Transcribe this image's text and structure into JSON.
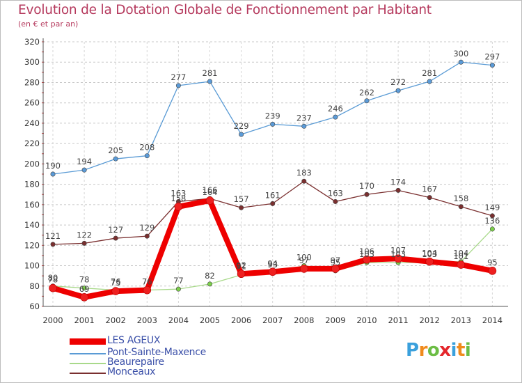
{
  "chart_data": {
    "type": "line",
    "title": "Evolution de la Dotation Globale de Fonctionnement par Habitant",
    "subtitle": "(en € et par an)",
    "x": [
      "2000",
      "2001",
      "2002",
      "2003",
      "2004",
      "2005",
      "2006",
      "2007",
      "2008",
      "2009",
      "2010",
      "2011",
      "2012",
      "2013",
      "2014"
    ],
    "y_ticks": [
      60,
      80,
      100,
      120,
      140,
      160,
      180,
      200,
      220,
      240,
      260,
      280,
      300,
      320
    ],
    "ylim": [
      60,
      320
    ],
    "grid": true,
    "legend_position": "bottom-left",
    "series": [
      {
        "name": "LES AGEUX",
        "color": "#ee0000",
        "marker_fill": "#ee2020",
        "values": [
          78,
          69,
          75,
          76,
          158,
          164,
          92,
          94,
          97,
          97,
          106,
          107,
          104,
          101,
          95
        ]
      },
      {
        "name": "Pont-Sainte-Maxence",
        "color": "#5a9bd5",
        "marker_fill": "#5b9bd8",
        "values": [
          190,
          194,
          205,
          208,
          277,
          281,
          229,
          239,
          237,
          246,
          262,
          272,
          281,
          300,
          297
        ]
      },
      {
        "name": "Beaurepaire",
        "color": "#a8d98a",
        "marker_fill": "#7ccf4a",
        "values": [
          80,
          78,
          76,
          76,
          77,
          82,
          91,
          93,
          100,
          95,
          103,
          103,
          103,
          104,
          136
        ]
      },
      {
        "name": "Monceaux",
        "color": "#7a2f2f",
        "marker_fill": "#7a2f2f",
        "values": [
          121,
          122,
          127,
          129,
          163,
          166,
          157,
          161,
          183,
          163,
          170,
          174,
          167,
          158,
          149
        ]
      }
    ]
  },
  "brand": {
    "letters": [
      "P",
      "r",
      "o",
      "x",
      "i",
      "t",
      "i"
    ],
    "colors": [
      "#3aa0dc",
      "#f08a1c",
      "#6cbd45",
      "#e4262b",
      "#3aa0dc",
      "#f08a1c",
      "#6cbd45"
    ]
  }
}
